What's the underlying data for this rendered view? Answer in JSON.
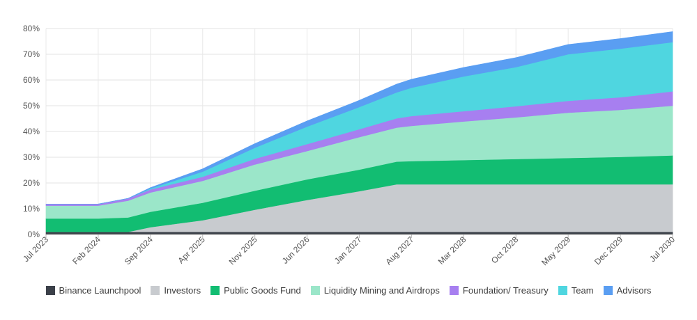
{
  "chart_data": {
    "type": "area",
    "stacked": true,
    "x_ticks": [
      "Jul 2023",
      "Feb 2024",
      "Sep 2024",
      "Apr 2025",
      "Nov 2025",
      "Jun 2026",
      "Jan 2027",
      "Aug 2027",
      "Mar 2028",
      "Oct 2028",
      "May 2029",
      "Dec 2029",
      "Jul 2030"
    ],
    "y_ticks": [
      "0%",
      "10%",
      "20%",
      "30%",
      "40%",
      "50%",
      "60%",
      "70%",
      "80%"
    ],
    "ylim": [
      0,
      80
    ],
    "grid": true,
    "legend_position": "bottom",
    "x": [
      "Jul 2023",
      "Feb 2024",
      "Jun 2024",
      "Sep 2024",
      "Apr 2025",
      "Nov 2025",
      "Jun 2026",
      "Jan 2027",
      "Jun 2027",
      "Aug 2027",
      "Mar 2028",
      "Oct 2028",
      "May 2029",
      "Dec 2029",
      "Jul 2030"
    ],
    "series": [
      {
        "name": "Binance Launchpool",
        "color": "#3b4049",
        "values": [
          1.0,
          1.0,
          1.0,
          1.0,
          1.0,
          1.0,
          1.0,
          1.0,
          1.0,
          1.0,
          1.0,
          1.0,
          1.0,
          1.0,
          1.0
        ]
      },
      {
        "name": "Investors",
        "color": "#c8cbcf",
        "values": [
          0.0,
          0.0,
          0.0,
          1.8,
          4.5,
          8.6,
          12.4,
          15.8,
          18.5,
          18.5,
          18.5,
          18.5,
          18.5,
          18.5,
          18.5
        ]
      },
      {
        "name": "Public Goods Fund",
        "color": "#12bd72",
        "values": [
          5.2,
          5.2,
          5.6,
          6.0,
          6.8,
          7.4,
          8.0,
          8.4,
          8.8,
          9.0,
          9.4,
          9.8,
          10.2,
          10.6,
          11.2
        ]
      },
      {
        "name": "Liquidity Mining and Airdrops",
        "color": "#9be6c9",
        "values": [
          5.0,
          5.0,
          6.5,
          7.5,
          8.5,
          10.2,
          11.0,
          12.6,
          13.2,
          13.7,
          15.0,
          16.2,
          17.6,
          18.3,
          19.3
        ]
      },
      {
        "name": "Foundation/ Treasury",
        "color": "#a77ff0",
        "values": [
          0.6,
          0.6,
          0.9,
          1.2,
          1.6,
          2.2,
          2.7,
          3.1,
          3.6,
          3.8,
          4.0,
          4.3,
          4.6,
          4.9,
          5.6
        ]
      },
      {
        "name": "Team",
        "color": "#4fd6e0",
        "values": [
          0.0,
          0.0,
          0.0,
          0.3,
          2.0,
          4.3,
          6.8,
          8.6,
          10.1,
          11.0,
          13.5,
          15.2,
          18.1,
          18.9,
          19.1
        ]
      },
      {
        "name": "Advisors",
        "color": "#5a9ef2",
        "values": [
          0.0,
          0.0,
          0.0,
          0.4,
          1.1,
          1.6,
          2.2,
          2.6,
          3.2,
          3.3,
          3.5,
          3.7,
          3.8,
          3.9,
          4.1
        ]
      }
    ]
  }
}
